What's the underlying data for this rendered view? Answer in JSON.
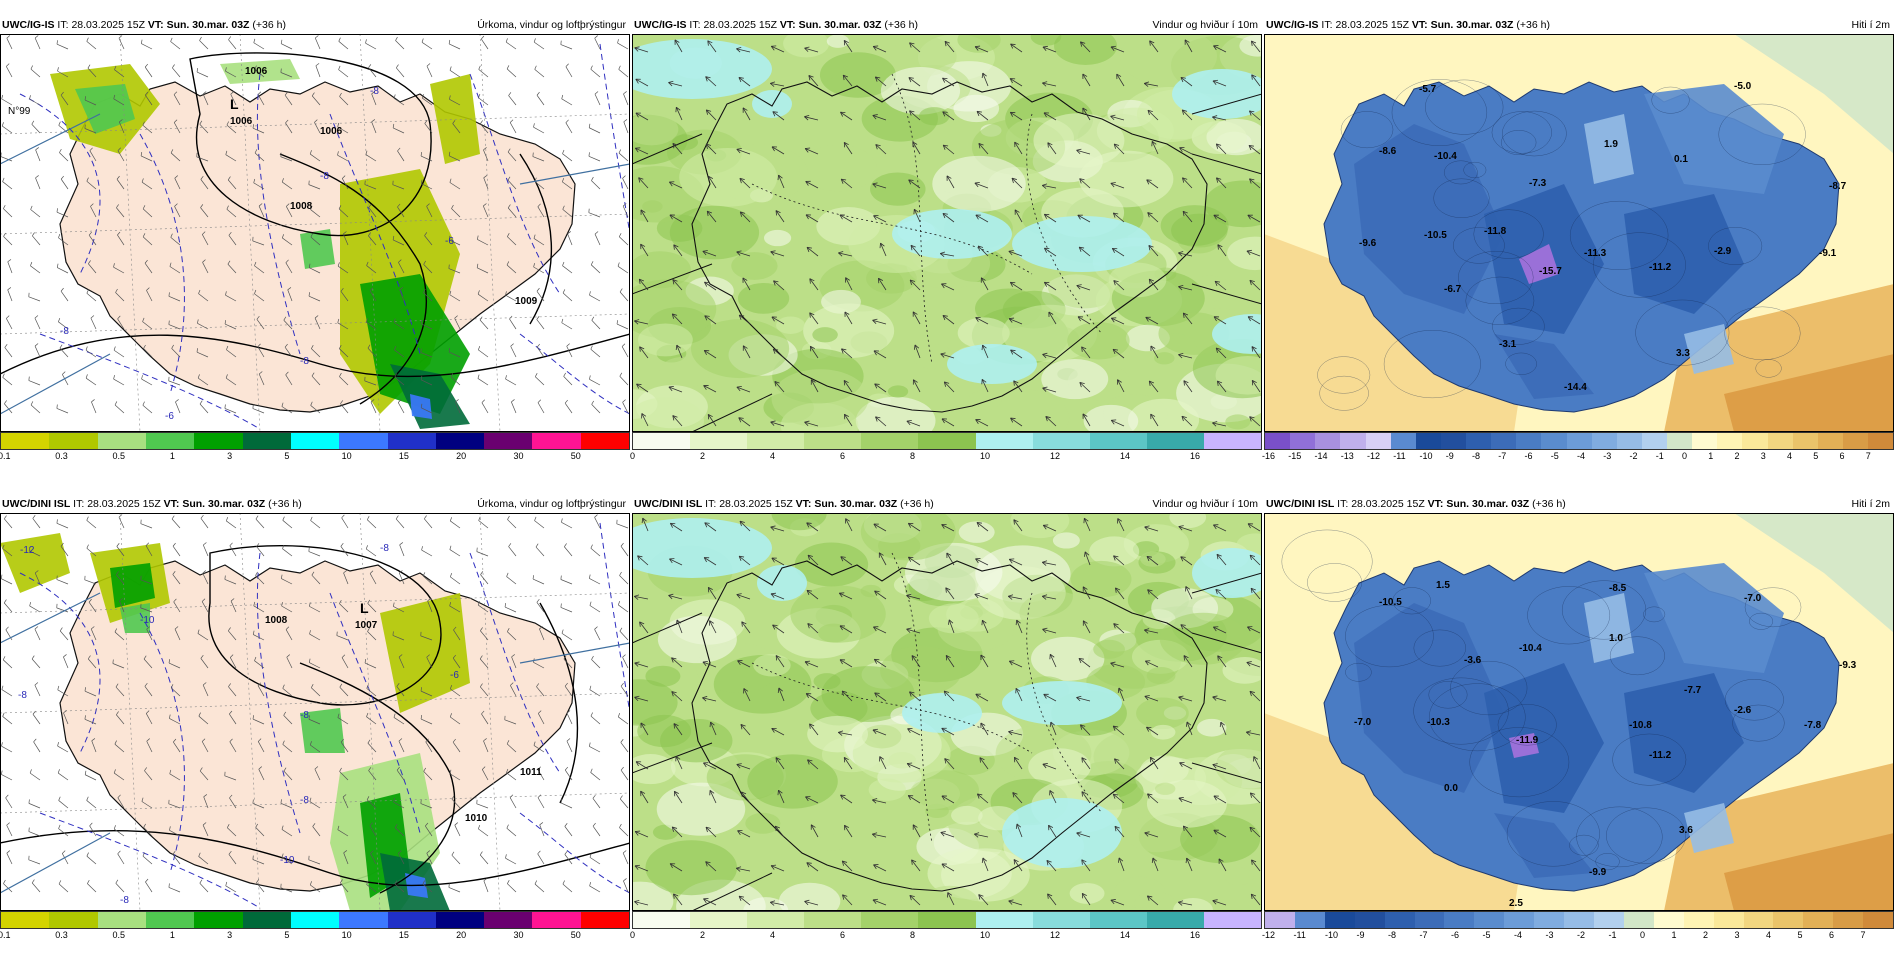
{
  "panels": [
    {
      "model": "UWC/IG-IS",
      "it_label": "IT:",
      "it": "28.03.2025 15Z",
      "vt_label": "VT:",
      "vt": "Sun. 30.mar. 03Z",
      "lead": "(+36 h)",
      "title": "Úrkoma, vindur og loftþrýstingur",
      "kind": "precip",
      "labels": [
        "1006",
        "L",
        "1006",
        "1008",
        "1009",
        "1006",
        "-8",
        "-8",
        "-8",
        "-6",
        "-8",
        "-6",
        "N°99"
      ],
      "colorbar": {
        "ticks": [
          "0.1",
          "0.3",
          "0.5",
          "1",
          "3",
          "5",
          "10",
          "15",
          "20",
          "30",
          "50"
        ],
        "colors": [
          "#d4d400",
          "#b0c800",
          "#a8e080",
          "#50c850",
          "#00a000",
          "#006a3a",
          "#00ffff",
          "#3c78ff",
          "#2030c8",
          "#000080",
          "#6a0070",
          "#ff1493",
          "#ff0000"
        ]
      }
    },
    {
      "model": "UWC/IG-IS",
      "it_label": "IT:",
      "it": "28.03.2025 15Z",
      "vt_label": "VT:",
      "vt": "Sun. 30.mar. 03Z",
      "lead": "(+36 h)",
      "title": "Vindur og hviður í 10m",
      "kind": "wind",
      "labels": [],
      "colorbar": {
        "ticks": [
          "0",
          "2",
          "4",
          "6",
          "8",
          "10",
          "12",
          "14",
          "16"
        ],
        "colors": [
          "#f8fcf0",
          "#e6f5c8",
          "#d2eca8",
          "#bcdf88",
          "#a4d26a",
          "#8cc450",
          "#aef0f0",
          "#88dcdc",
          "#5cc6c6",
          "#38aaaa",
          "#c8b4ff"
        ]
      }
    },
    {
      "model": "UWC/IG-IS",
      "it_label": "IT:",
      "it": "28.03.2025 15Z",
      "vt_label": "VT:",
      "vt": "Sun. 30.mar. 03Z",
      "lead": "(+36 h)",
      "title": "Hiti í 2m",
      "kind": "temp",
      "labels": [
        "-5.7",
        "-5.0",
        "-8.6",
        "-10.4",
        "1.9",
        "0.1",
        "-8.7",
        "-7.3",
        "-11.8",
        "-9.6",
        "-10.5",
        "-11.3",
        "-2.9",
        "-9.1",
        "-15.7",
        "-11.2",
        "-6.7",
        "-3.1",
        "3.3",
        "-14.4"
      ],
      "colorbar": {
        "ticks": [
          "-16",
          "-15",
          "-14",
          "-13",
          "-12",
          "-11",
          "-10",
          "-9",
          "-8",
          "-7",
          "-6",
          "-5",
          "-4",
          "-3",
          "-2",
          "-1",
          "0",
          "1",
          "2",
          "3",
          "4",
          "5",
          "6",
          "7"
        ],
        "colors": [
          "#7a50c8",
          "#9070d8",
          "#a890e0",
          "#c0b0ec",
          "#d8d0f6",
          "#5a8ad0",
          "#1a4a9a",
          "#224f9e",
          "#2e5fae",
          "#3c6cb8",
          "#4a7cc4",
          "#5a8cce",
          "#6c9cd8",
          "#80ace0",
          "#96bce6",
          "#b2d0ee",
          "#d2e6c8",
          "#fffbd0",
          "#fff4b4",
          "#fae89a",
          "#f2d680",
          "#eac46a",
          "#e2b056",
          "#d89c46",
          "#d08a3a"
        ]
      }
    },
    {
      "model": "UWC/DINI ISL",
      "it_label": "IT:",
      "it": "28.03.2025 15Z",
      "vt_label": "VT:",
      "vt": "Sun. 30.mar. 03Z",
      "lead": "(+36 h)",
      "title": "Úrkoma, vindur og loftþrýstingur",
      "kind": "precip",
      "labels": [
        "-12",
        "1008",
        "L",
        "1007",
        "1011",
        "1010",
        "-8",
        "-10",
        "-8",
        "-6",
        "-8",
        "-8",
        "-10",
        "-8"
      ],
      "colorbar": {
        "ticks": [
          "0.1",
          "0.3",
          "0.5",
          "1",
          "3",
          "5",
          "10",
          "15",
          "20",
          "30",
          "50"
        ],
        "colors": [
          "#d4d400",
          "#b0c800",
          "#a8e080",
          "#50c850",
          "#00a000",
          "#006a3a",
          "#00ffff",
          "#3c78ff",
          "#2030c8",
          "#000080",
          "#6a0070",
          "#ff1493",
          "#ff0000"
        ]
      }
    },
    {
      "model": "UWC/DINI ISL",
      "it_label": "IT:",
      "it": "28.03.2025 15Z",
      "vt_label": "VT:",
      "vt": "Sun. 30.mar. 03Z",
      "lead": "(+36 h)",
      "title": "Vindur og hviður í 10m",
      "kind": "wind",
      "labels": [],
      "colorbar": {
        "ticks": [
          "0",
          "2",
          "4",
          "6",
          "8",
          "10",
          "12",
          "14",
          "16"
        ],
        "colors": [
          "#f8fcf0",
          "#e6f5c8",
          "#d2eca8",
          "#bcdf88",
          "#a4d26a",
          "#8cc450",
          "#aef0f0",
          "#88dcdc",
          "#5cc6c6",
          "#38aaaa",
          "#c8b4ff"
        ]
      }
    },
    {
      "model": "UWC/DINI ISL",
      "it_label": "IT:",
      "it": "28.03.2025 15Z",
      "vt_label": "VT:",
      "vt": "Sun. 30.mar. 03Z",
      "lead": "(+36 h)",
      "title": "Hiti í 2m",
      "kind": "temp",
      "labels": [
        "-10.5",
        "1.5",
        "-8.5",
        "-7.0",
        "-3.6",
        "-10.4",
        "1.0",
        "-9.3",
        "-7.7",
        "-2.6",
        "-7.0",
        "-10.3",
        "-11.9",
        "-10.8",
        "-11.2",
        "-7.8",
        "0.0",
        "3.6",
        "-9.9",
        "2.5"
      ],
      "colorbar": {
        "ticks": [
          "-12",
          "-11",
          "-10",
          "-9",
          "-8",
          "-7",
          "-6",
          "-5",
          "-4",
          "-3",
          "-2",
          "-1",
          "0",
          "1",
          "2",
          "3",
          "4",
          "5",
          "6",
          "7"
        ],
        "colors": [
          "#c0b0ec",
          "#5a8ad0",
          "#1a4a9a",
          "#224f9e",
          "#2e5fae",
          "#3c6cb8",
          "#4a7cc4",
          "#5a8cce",
          "#6c9cd8",
          "#80ace0",
          "#96bce6",
          "#b2d0ee",
          "#d2e6c8",
          "#fffbd0",
          "#fff4b4",
          "#fae89a",
          "#f2d680",
          "#eac46a",
          "#e2b056",
          "#d89c46",
          "#d08a3a"
        ]
      }
    }
  ]
}
